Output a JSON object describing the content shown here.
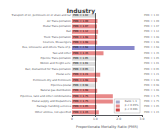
{
  "chart_data": {
    "type": "bar",
    "orientation": "horizontal",
    "title": "Industry",
    "xlabel": "Proportionate Mortality Ratio (PMR)",
    "categories": [
      "Other utilities, not specified",
      "Package handling services",
      "Postal supply and Dispatchers",
      "Pipelines, tank and other combinations",
      "Natural gas distribution",
      "Pipelines postal",
      "Petroleum dry and Petroleum",
      "Postal serv.",
      "Rail, dismantled for Trans portation",
      "Motion and freight serv.",
      "Pipeline Trans portation",
      "Taxi and other",
      "Bus, Limousine and others Trans of p.",
      "Couriers, Messengers",
      "Truck Trans portation",
      "Rail",
      "Postal Trans portation",
      "Air Trans portation",
      "Transport of oil, petroleum oil or shale and tar"
    ],
    "values": [
      1.15,
      1.05,
      1.75,
      1.75,
      1.08,
      0.98,
      1.08,
      1.21,
      0.95,
      1.01,
      1.05,
      1.35,
      2.68,
      1.08,
      1.08,
      1.12,
      1.07,
      1.09,
      1.02
    ],
    "value_labels": [
      "PMR = 1.15",
      "PMR = 1.05",
      "PMR = 1.75",
      "PMR = 1.75",
      "PMR = 1.08",
      "PMR = 0.98",
      "PMR = 1.08",
      "PMR = 1.21",
      "PMR = 0.95",
      "PMR = 1.01",
      "PMR = 1.05",
      "PMR = 1.35",
      "PMR = 2.68",
      "PMR = 1.08",
      "PMR = 1.08",
      "PMR = 1.12",
      "PMR = 1.07",
      "PMR = 1.09",
      "PMR = 1.02"
    ],
    "data_labels": true,
    "colors": [
      "#e88888",
      "#e88888",
      "#e88888",
      "#e88888",
      "#e88888",
      "#dddddd",
      "#e88888",
      "#e88888",
      "#dddddd",
      "#dddddd",
      "#dddddd",
      "#e88888",
      "#8888cc",
      "#e88888",
      "#e88888",
      "#e88888",
      "#e88888",
      "#e88888",
      "#dddddd"
    ],
    "xlim": [
      0,
      3.0
    ],
    "xticks": [
      0,
      {
        "value": 1.0,
        "label": "1.0"
      },
      {
        "value": 2.0,
        "label": "2.0"
      },
      {
        "value": 3.0,
        "label": "3.0"
      }
    ],
    "reference_x": 1.0,
    "grid": false,
    "legend": "lower right",
    "legend_items": [
      {
        "label": "Ratio > 1",
        "color": "#aaaacc"
      },
      {
        "label": "p < 0.05%",
        "color": "#e88888"
      },
      {
        "label": "p < 0.001",
        "color": "#cc4444"
      }
    ]
  }
}
